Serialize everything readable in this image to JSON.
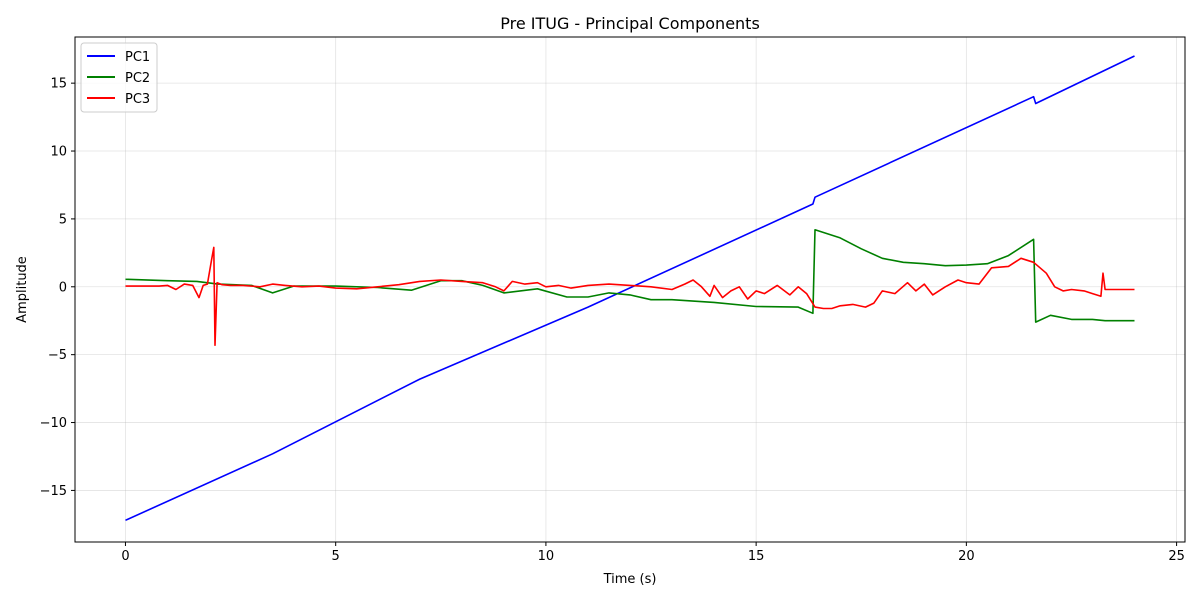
{
  "chart_data": {
    "type": "line",
    "title": "Pre ITUG - Principal Components",
    "xlabel": "Time (s)",
    "ylabel": "Amplitude",
    "xlim": [
      -1.2,
      25.2
    ],
    "ylim": [
      -18.8,
      18.4
    ],
    "xticks": [
      0,
      5,
      10,
      15,
      20,
      25
    ],
    "xtick_labels": [
      "0",
      "5",
      "10",
      "15",
      "20",
      "25"
    ],
    "yticks": [
      -15,
      -10,
      -5,
      0,
      5,
      10,
      15
    ],
    "ytick_labels": [
      "−15",
      "−10",
      "−5",
      "0",
      "5",
      "10",
      "15"
    ],
    "grid": true,
    "legend_position": "upper-left",
    "series": [
      {
        "name": "PC1",
        "color": "#0000ff",
        "x": [
          0,
          3.5,
          7,
          11,
          16.35,
          16.4,
          21.6,
          21.65,
          24
        ],
        "y": [
          -17.2,
          -12.3,
          -6.8,
          -1.5,
          6.1,
          6.6,
          14.0,
          13.5,
          17.0
        ]
      },
      {
        "name": "PC2",
        "color": "#008000",
        "x": [
          0,
          1,
          1.7,
          2.2,
          3,
          3.5,
          4,
          5,
          6,
          6.8,
          7.5,
          8,
          8.5,
          9,
          9.8,
          10.5,
          11,
          11.5,
          12,
          12.5,
          13,
          14,
          15,
          16,
          16.35,
          16.4,
          17,
          17.5,
          18,
          18.5,
          19,
          19.5,
          20,
          20.5,
          21,
          21.6,
          21.65,
          22,
          22.5,
          23,
          23.3,
          24
        ],
        "y": [
          0.55,
          0.45,
          0.4,
          0.2,
          0.1,
          -0.45,
          0.05,
          0.05,
          -0.05,
          -0.25,
          0.45,
          0.45,
          0.1,
          -0.45,
          -0.15,
          -0.75,
          -0.75,
          -0.45,
          -0.6,
          -0.95,
          -0.95,
          -1.15,
          -1.45,
          -1.5,
          -1.95,
          4.2,
          3.6,
          2.8,
          2.1,
          1.8,
          1.7,
          1.55,
          1.6,
          1.7,
          2.3,
          3.5,
          -2.6,
          -2.1,
          -2.4,
          -2.4,
          -2.5,
          -2.5
        ]
      },
      {
        "name": "PC3",
        "color": "#ff0000",
        "x": [
          0,
          0.8,
          1.0,
          1.2,
          1.4,
          1.6,
          1.75,
          1.85,
          1.95,
          2.05,
          2.1,
          2.13,
          2.18,
          2.3,
          2.5,
          2.8,
          3.2,
          3.5,
          3.8,
          4.2,
          4.6,
          5.0,
          5.5,
          6.0,
          6.5,
          7.0,
          7.5,
          8.0,
          8.5,
          8.8,
          9.0,
          9.2,
          9.5,
          9.8,
          10.0,
          10.3,
          10.6,
          11.0,
          11.5,
          12.0,
          12.5,
          13.0,
          13.3,
          13.5,
          13.7,
          13.9,
          14.0,
          14.2,
          14.4,
          14.6,
          14.8,
          15.0,
          15.2,
          15.5,
          15.8,
          16.0,
          16.2,
          16.4,
          16.6,
          16.8,
          17.0,
          17.3,
          17.6,
          17.8,
          18.0,
          18.3,
          18.6,
          18.8,
          19.0,
          19.2,
          19.5,
          19.8,
          20.0,
          20.3,
          20.6,
          21.0,
          21.3,
          21.6,
          21.9,
          22.1,
          22.3,
          22.5,
          22.8,
          23.0,
          23.2,
          23.25,
          23.3,
          23.5,
          24.0
        ],
        "y": [
          0.05,
          0.05,
          0.1,
          -0.2,
          0.2,
          0.1,
          -0.8,
          0.1,
          0.2,
          2.0,
          2.9,
          -4.3,
          0.3,
          0.15,
          0.1,
          0.1,
          0.0,
          0.2,
          0.1,
          0.0,
          0.05,
          -0.1,
          -0.15,
          0.0,
          0.15,
          0.4,
          0.5,
          0.4,
          0.3,
          0.0,
          -0.3,
          0.4,
          0.2,
          0.3,
          0.0,
          0.1,
          -0.1,
          0.1,
          0.2,
          0.1,
          0.0,
          -0.2,
          0.2,
          0.5,
          0.0,
          -0.7,
          0.1,
          -0.8,
          -0.3,
          0.0,
          -0.9,
          -0.3,
          -0.5,
          0.1,
          -0.6,
          0.0,
          -0.5,
          -1.5,
          -1.6,
          -1.6,
          -1.4,
          -1.3,
          -1.5,
          -1.2,
          -0.3,
          -0.5,
          0.3,
          -0.3,
          0.2,
          -0.6,
          0.0,
          0.5,
          0.3,
          0.2,
          1.4,
          1.5,
          2.1,
          1.8,
          1.0,
          0.0,
          -0.3,
          -0.2,
          -0.3,
          -0.5,
          -0.7,
          1.0,
          -0.2,
          -0.2,
          -0.2
        ]
      }
    ]
  }
}
